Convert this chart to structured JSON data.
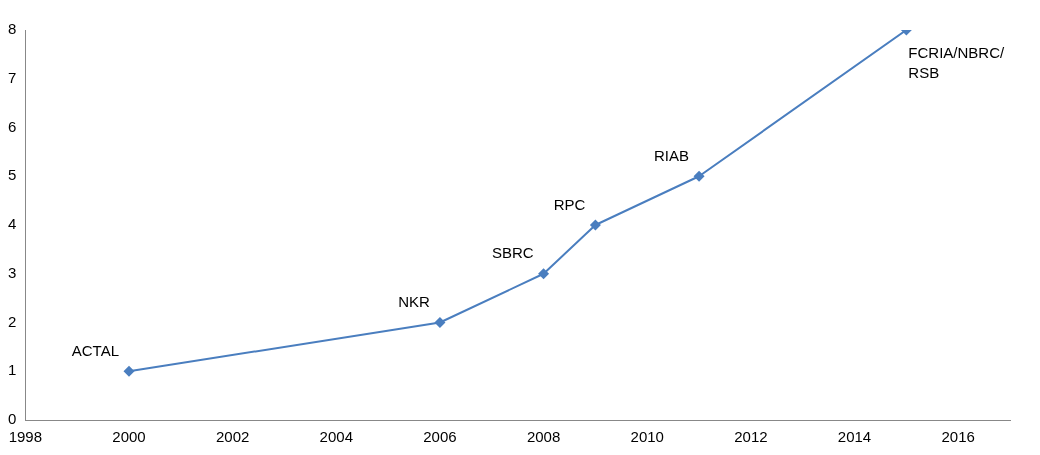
{
  "chart_data": {
    "type": "line",
    "x": [
      2000,
      2006,
      2008,
      2009,
      2011,
      2015
    ],
    "series": [
      {
        "color": "#4a7ebf",
        "values": [
          1,
          2,
          3,
          4,
          5,
          8
        ]
      }
    ],
    "xlim": [
      1998,
      2017
    ],
    "xticks": [
      1998,
      2000,
      2002,
      2004,
      2006,
      2008,
      2010,
      2012,
      2014,
      2016
    ],
    "ylim": [
      0,
      8
    ],
    "yticks": [
      0,
      1,
      2,
      3,
      4,
      5,
      6,
      7,
      8
    ],
    "grid": false,
    "legend": false,
    "marker": "diamond",
    "line_style": "solid",
    "annotations": [
      {
        "text": "ACTAL",
        "x": 2000,
        "y": 1
      },
      {
        "text": "NKR",
        "x": 2006,
        "y": 2
      },
      {
        "text": "SBRC",
        "x": 2008,
        "y": 3
      },
      {
        "text": "RPC",
        "x": 2009,
        "y": 4
      },
      {
        "text": "RIAB",
        "x": 2011,
        "y": 5
      },
      {
        "text": "FCRIA/NBRC/\nRSB",
        "x": 2015,
        "y": 8
      }
    ]
  }
}
